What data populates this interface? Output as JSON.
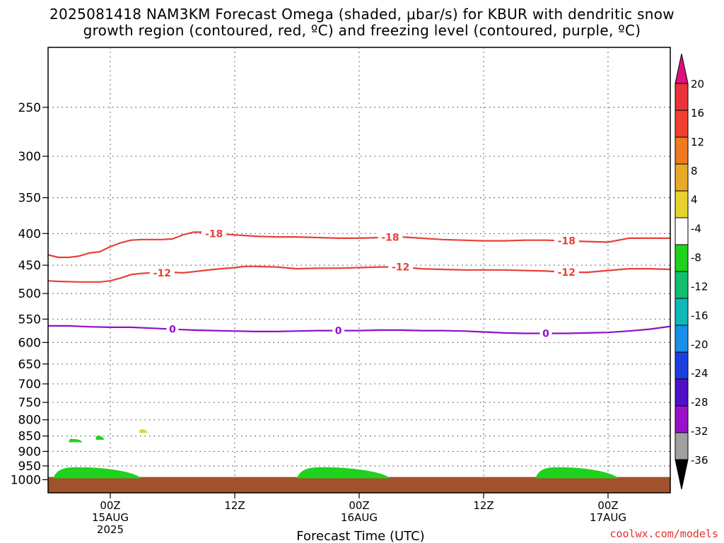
{
  "title": {
    "line1": "2025081418 NAM3KM Forecast Omega (shaded, μbar/s) for KBUR with dendritic snow",
    "line2": "growth region (contoured, red, ºC) and freezing level (contoured, purple, ºC)"
  },
  "credit": "coolwx.com/models",
  "chart_data": {
    "type": "heatmap",
    "title": "2025081418 NAM3KM Forecast Omega (shaded, μbar/s) for KBUR with dendritic snow growth region (contoured, red, ºC) and freezing level (contoured, purple, ºC)",
    "xlabel": "Forecast Time (UTC)",
    "ylabel": "",
    "x_range_hours_from_2025081418": [
      0,
      60
    ],
    "y_axis": {
      "scale": "log-pressure",
      "reversed": true,
      "range_hPa": [
        1050,
        200
      ],
      "ticks": [
        "250",
        "300",
        "350",
        "400",
        "450",
        "500",
        "550",
        "600",
        "650",
        "700",
        "750",
        "800",
        "850",
        "900",
        "950",
        "1000"
      ],
      "tick_values": [
        250,
        300,
        350,
        400,
        450,
        500,
        550,
        600,
        650,
        700,
        750,
        800,
        850,
        900,
        950,
        1000
      ]
    },
    "x_ticks": [
      {
        "hour": 6,
        "label": [
          "00Z",
          "15AUG",
          "2025"
        ]
      },
      {
        "hour": 18,
        "label": [
          "12Z"
        ]
      },
      {
        "hour": 30,
        "label": [
          "00Z",
          "16AUG"
        ]
      },
      {
        "hour": 42,
        "label": [
          "12Z"
        ]
      },
      {
        "hour": 54,
        "label": [
          "00Z",
          "17AUG"
        ]
      }
    ],
    "grid": true,
    "colorbar": {
      "location": "right",
      "labels": [
        "20",
        "16",
        "12",
        "8",
        "4",
        "-4",
        "-8",
        "-12",
        "-16",
        "-20",
        "-24",
        "-28",
        "-32",
        "-36"
      ],
      "top_arrow_color": "#e0107a",
      "bottom_arrow_color": "#000000",
      "bins": [
        {
          "color": "#e8333a"
        },
        {
          "color": "#f04030"
        },
        {
          "color": "#f07a20"
        },
        {
          "color": "#e8a828"
        },
        {
          "color": "#e6d230"
        },
        {
          "color": "#ffffff"
        },
        {
          "color": "#1ed21e"
        },
        {
          "color": "#10c070"
        },
        {
          "color": "#10b8b8"
        },
        {
          "color": "#1890e8"
        },
        {
          "color": "#1c40e0"
        },
        {
          "color": "#5010c8"
        },
        {
          "color": "#9a10c8"
        },
        {
          "color": "#a0a0a0"
        }
      ]
    },
    "contours": [
      {
        "value": "-18",
        "color": "#e8403a",
        "points_hour_hPa": [
          [
            0,
            433
          ],
          [
            1,
            437
          ],
          [
            2,
            437
          ],
          [
            3,
            435
          ],
          [
            4,
            430
          ],
          [
            5,
            428
          ],
          [
            6,
            420
          ],
          [
            7,
            414
          ],
          [
            8,
            410
          ],
          [
            9,
            409
          ],
          [
            10,
            409
          ],
          [
            11,
            409
          ],
          [
            12,
            408
          ],
          [
            13,
            402
          ],
          [
            14,
            398
          ],
          [
            15,
            398
          ],
          [
            16,
            400
          ],
          [
            18,
            402
          ],
          [
            20,
            404
          ],
          [
            22,
            405
          ],
          [
            24,
            405
          ],
          [
            26,
            406
          ],
          [
            28,
            407
          ],
          [
            30,
            407
          ],
          [
            32,
            406
          ],
          [
            34,
            405
          ],
          [
            36,
            407
          ],
          [
            38,
            409
          ],
          [
            40,
            410
          ],
          [
            42,
            411
          ],
          [
            44,
            411
          ],
          [
            46,
            410
          ],
          [
            48,
            410
          ],
          [
            50,
            411
          ],
          [
            52,
            412
          ],
          [
            54,
            413
          ],
          [
            56,
            407
          ],
          [
            58,
            407
          ],
          [
            60,
            407
          ]
        ],
        "label_hours": [
          16,
          33,
          50
        ]
      },
      {
        "value": "-12",
        "color": "#e8403a",
        "points_hour_hPa": [
          [
            0,
            477
          ],
          [
            1,
            478
          ],
          [
            3,
            479
          ],
          [
            5,
            479
          ],
          [
            6,
            477
          ],
          [
            7,
            472
          ],
          [
            8,
            466
          ],
          [
            9,
            464
          ],
          [
            10,
            463
          ],
          [
            11,
            463
          ],
          [
            12,
            462
          ],
          [
            13,
            463
          ],
          [
            14,
            461
          ],
          [
            15,
            459
          ],
          [
            16,
            457
          ],
          [
            18,
            454
          ],
          [
            19,
            452
          ],
          [
            20,
            452
          ],
          [
            22,
            453
          ],
          [
            24,
            456
          ],
          [
            26,
            455
          ],
          [
            28,
            455
          ],
          [
            30,
            454
          ],
          [
            32,
            453
          ],
          [
            34,
            453
          ],
          [
            36,
            456
          ],
          [
            38,
            457
          ],
          [
            40,
            458
          ],
          [
            42,
            458
          ],
          [
            44,
            458
          ],
          [
            46,
            459
          ],
          [
            48,
            460
          ],
          [
            50,
            462
          ],
          [
            52,
            462
          ],
          [
            54,
            459
          ],
          [
            56,
            456
          ],
          [
            58,
            456
          ],
          [
            60,
            457
          ]
        ],
        "label_hours": [
          11,
          34,
          50
        ]
      },
      {
        "value": "0",
        "color": "#9010c8",
        "points_hour_hPa": [
          [
            0,
            564
          ],
          [
            2,
            564
          ],
          [
            4,
            566
          ],
          [
            6,
            567
          ],
          [
            8,
            567
          ],
          [
            10,
            569
          ],
          [
            12,
            571
          ],
          [
            14,
            573
          ],
          [
            16,
            574
          ],
          [
            18,
            575
          ],
          [
            20,
            576
          ],
          [
            22,
            576
          ],
          [
            24,
            575
          ],
          [
            26,
            574
          ],
          [
            28,
            574
          ],
          [
            30,
            574
          ],
          [
            32,
            573
          ],
          [
            34,
            573
          ],
          [
            36,
            574
          ],
          [
            38,
            574
          ],
          [
            40,
            575
          ],
          [
            42,
            577
          ],
          [
            44,
            579
          ],
          [
            46,
            580
          ],
          [
            48,
            580
          ],
          [
            50,
            580
          ],
          [
            52,
            579
          ],
          [
            54,
            578
          ],
          [
            56,
            575
          ],
          [
            58,
            571
          ],
          [
            60,
            565
          ]
        ],
        "label_hours": [
          12,
          28,
          48
        ]
      }
    ],
    "shaded_regions": [
      {
        "value_bin": "-4 to -8",
        "color": "#1ed21e",
        "p_top_hPa": 950,
        "p_bottom_hPa": 995,
        "hours": [
          0.5,
          9
        ]
      },
      {
        "value_bin": "-4 to -8",
        "color": "#1ed21e",
        "p_top_hPa": 950,
        "p_bottom_hPa": 995,
        "hours": [
          24,
          33
        ]
      },
      {
        "value_bin": "-4 to -8",
        "color": "#1ed21e",
        "p_top_hPa": 950,
        "p_bottom_hPa": 995,
        "hours": [
          47,
          55
        ]
      },
      {
        "value_bin": "-4 to -8",
        "color": "#1ed21e",
        "p_top_hPa": 855,
        "p_bottom_hPa": 870,
        "hours": [
          2,
          3.3
        ]
      },
      {
        "value_bin": "-4 to -8",
        "color": "#1ed21e",
        "p_top_hPa": 845,
        "p_bottom_hPa": 862,
        "hours": [
          4.6,
          5.4
        ]
      },
      {
        "value_bin": "4 to 8",
        "color": "#e6d230",
        "p_top_hPa": 825,
        "p_bottom_hPa": 840,
        "hours": [
          8.8,
          9.6
        ]
      }
    ],
    "terrain": {
      "color": "#a0522d",
      "p_top_hPa": 990
    }
  }
}
